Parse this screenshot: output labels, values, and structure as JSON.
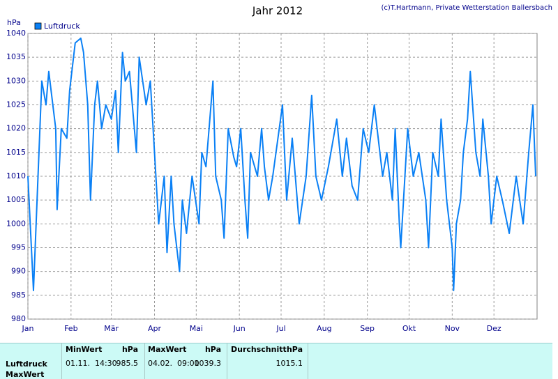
{
  "chart_data": {
    "type": "line",
    "title": "Jahr 2012",
    "credit": "(c)T.Hartmann, Private Wetterstation Ballersbach",
    "y_label": "hPa",
    "xlim": [
      0,
      366
    ],
    "xticks": [
      {
        "value": 0,
        "label": "Jan"
      },
      {
        "value": 31,
        "label": "Feb"
      },
      {
        "value": 60,
        "label": "Mär"
      },
      {
        "value": 91,
        "label": "Apr"
      },
      {
        "value": 121,
        "label": "Mai"
      },
      {
        "value": 152,
        "label": "Jun"
      },
      {
        "value": 182,
        "label": "Jul"
      },
      {
        "value": 213,
        "label": "Aug"
      },
      {
        "value": 244,
        "label": "Sep"
      },
      {
        "value": 274,
        "label": "Okt"
      },
      {
        "value": 305,
        "label": "Nov"
      },
      {
        "value": 335,
        "label": "Dez"
      }
    ],
    "ylim": [
      980,
      1040
    ],
    "yticks": [
      980,
      985,
      990,
      995,
      1000,
      1005,
      1010,
      1015,
      1020,
      1025,
      1030,
      1035,
      1040
    ],
    "grid": true,
    "legend": "top-left",
    "x": [
      0,
      4,
      10,
      13,
      15,
      20,
      21,
      24,
      28,
      30,
      34,
      38,
      40,
      43,
      45,
      48,
      50,
      53,
      56,
      60,
      63,
      65,
      68,
      70,
      73,
      78,
      80,
      85,
      88,
      91,
      94,
      98,
      100,
      103,
      105,
      109,
      111,
      114,
      118,
      123,
      125,
      128,
      133,
      135,
      139,
      141,
      144,
      148,
      150,
      153,
      156,
      158,
      160,
      165,
      168,
      170,
      173,
      176,
      183,
      186,
      190,
      195,
      200,
      204,
      207,
      211,
      216,
      222,
      226,
      229,
      233,
      237,
      241,
      245,
      249,
      255,
      258,
      262,
      264,
      267,
      268,
      271,
      273,
      277,
      281,
      286,
      288,
      291,
      295,
      297,
      301,
      305,
      306,
      308,
      311,
      313,
      316,
      318,
      322,
      325,
      327,
      331,
      333,
      337,
      341,
      346,
      351,
      356,
      360,
      363,
      365
    ],
    "series": [
      {
        "name": "Luftdruck",
        "color": "#0a80f5",
        "values": [
          1010,
          986,
          1030,
          1025,
          1032,
          1020,
          1003,
          1020,
          1018,
          1028,
          1038,
          1039,
          1036,
          1025,
          1005,
          1025,
          1030,
          1020,
          1025,
          1022,
          1028,
          1015,
          1036,
          1030,
          1032,
          1015,
          1035,
          1025,
          1030,
          1015,
          1000,
          1010,
          994,
          1010,
          1000,
          990,
          1005,
          998,
          1010,
          1000,
          1015,
          1012,
          1030,
          1010,
          1005,
          997,
          1020,
          1014,
          1012,
          1020,
          1005,
          997,
          1015,
          1010,
          1020,
          1012,
          1005,
          1010,
          1025,
          1005,
          1018,
          1000,
          1010,
          1027,
          1010,
          1005,
          1012,
          1022,
          1010,
          1018,
          1008,
          1005,
          1020,
          1015,
          1025,
          1010,
          1015,
          1005,
          1020,
          1000,
          995,
          1010,
          1020,
          1010,
          1015,
          1005,
          995,
          1015,
          1010,
          1022,
          1005,
          995,
          986,
          1000,
          1005,
          1015,
          1022,
          1032,
          1015,
          1010,
          1022,
          1010,
          1000,
          1010,
          1005,
          998,
          1010,
          1000,
          1015,
          1025,
          1010
        ]
      }
    ]
  },
  "table": {
    "header": [
      "MinWert",
      "hPa",
      "MaxWert",
      "hPa",
      "Durchschnitt",
      "hPa"
    ],
    "rows": [
      {
        "label": "Luftdruck",
        "cells": [
          "01.11.  14:30",
          "985.5",
          "04.02.  09:00",
          "1039.3",
          "1015.1"
        ]
      },
      {
        "label": "MaxWert"
      }
    ]
  }
}
